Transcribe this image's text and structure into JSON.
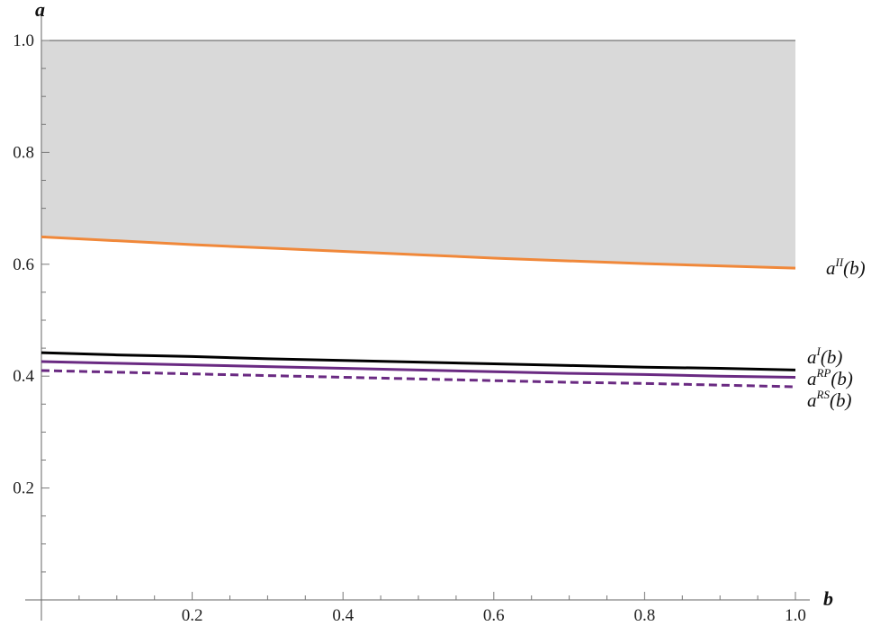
{
  "chart_data": {
    "type": "line",
    "title": "",
    "xlabel": "b",
    "ylabel": "a",
    "xlim": [
      0,
      1.0
    ],
    "ylim": [
      0,
      1.0
    ],
    "xticks": [
      0.2,
      0.4,
      0.6,
      0.8,
      1.0
    ],
    "xtick_labels": [
      "0.2",
      "0.4",
      "0.6",
      "0.8",
      "1.0"
    ],
    "yticks": [
      0.2,
      0.4,
      0.6,
      0.8,
      1.0
    ],
    "ytick_labels": [
      "0.2",
      "0.4",
      "0.6",
      "0.8",
      "1.0"
    ],
    "grid": false,
    "legend": "inline labels at right end of each curve",
    "shaded_region": {
      "between": [
        "a^II(b)",
        "upper bound"
      ],
      "upper": 1.0,
      "color": "#d9d9d9"
    },
    "x": [
      0,
      0.1,
      0.2,
      0.3,
      0.4,
      0.5,
      0.6,
      0.7,
      0.8,
      0.9,
      1.0
    ],
    "series": [
      {
        "name": "a^II(b)",
        "base": "a",
        "sup": "II",
        "arg": "(b)",
        "color": "#f0883a",
        "dash": false,
        "values": [
          0.649,
          0.642,
          0.635,
          0.629,
          0.623,
          0.617,
          0.611,
          0.606,
          0.601,
          0.597,
          0.593
        ]
      },
      {
        "name": "a^I(b)",
        "base": "a",
        "sup": "I",
        "arg": "(b)",
        "color": "#000000",
        "dash": false,
        "values": [
          0.442,
          0.438,
          0.435,
          0.431,
          0.428,
          0.425,
          0.422,
          0.419,
          0.416,
          0.414,
          0.411
        ]
      },
      {
        "name": "a^RP(b)",
        "base": "a",
        "sup": "RP",
        "arg": "(b)",
        "color": "#6a2a82",
        "dash": false,
        "values": [
          0.426,
          0.423,
          0.42,
          0.417,
          0.414,
          0.411,
          0.408,
          0.405,
          0.403,
          0.4,
          0.398
        ]
      },
      {
        "name": "a^RS(b)",
        "base": "a",
        "sup": "RS",
        "arg": "(b)",
        "color": "#6a2a82",
        "dash": true,
        "values": [
          0.41,
          0.407,
          0.404,
          0.401,
          0.398,
          0.395,
          0.392,
          0.389,
          0.387,
          0.384,
          0.381
        ]
      }
    ]
  }
}
